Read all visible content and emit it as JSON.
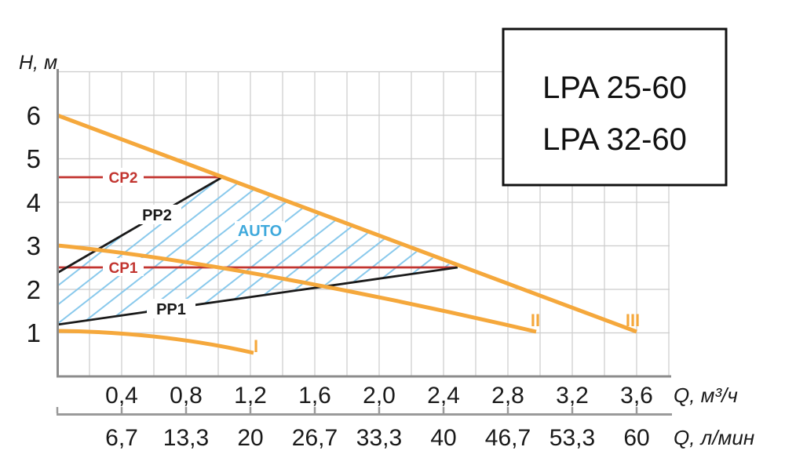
{
  "legend": {
    "line1": "LPA 25-60",
    "line2": "LPA 32-60"
  },
  "axes": {
    "y": {
      "label": "H, м",
      "ticks": [
        "6",
        "5",
        "4",
        "3",
        "2",
        "1"
      ]
    },
    "x1": {
      "unit": "Q, м³/ч",
      "ticks": [
        "0,4",
        "0,8",
        "1,2",
        "1,6",
        "2,0",
        "2,4",
        "2,8",
        "3,2",
        "3,6"
      ]
    },
    "x2": {
      "unit": "Q, л/мин",
      "ticks": [
        "6,7",
        "13,3",
        "20",
        "26,7",
        "33,3",
        "40",
        "46,7",
        "53,3",
        "60"
      ]
    }
  },
  "curve_labels": {
    "cp2": "CP2",
    "cp1": "CP1",
    "pp2": "PP2",
    "pp1": "PP1",
    "auto": "AUTO",
    "i": "I",
    "ii": "II",
    "iii": "III"
  },
  "colors": {
    "curve_orange": "#F5A83C",
    "cp_red": "#C2342F",
    "pp_black": "#1A1A1A",
    "auto_text_blue": "#3FA9DC",
    "hatch_blue": "#89C9EC",
    "grid": "#CCCCCC",
    "axis_gray": "#8C8C8C"
  },
  "chart_data": {
    "type": "line",
    "title": "LPA 25-60 / LPA 32-60 circulation pump performance curves",
    "xlabel": "Q, м³/ч",
    "xlabel_secondary": "Q, л/мин",
    "ylabel": "H, м",
    "x_range": [
      0,
      3.8
    ],
    "y_range": [
      0,
      7
    ],
    "grid": {
      "x_step": 0.2,
      "y_step": 1.0,
      "visible": true
    },
    "x_ticks_m3h": [
      0.4,
      0.8,
      1.2,
      1.6,
      2.0,
      2.4,
      2.8,
      3.2,
      3.6
    ],
    "x_ticks_lmin": [
      6.7,
      13.3,
      20,
      26.7,
      33.3,
      40,
      46.7,
      53.3,
      60
    ],
    "y_ticks": [
      1,
      2,
      3,
      4,
      5,
      6
    ],
    "series": [
      {
        "name": "III",
        "role": "speed-3-max-curve",
        "color": "#F5A83C",
        "points": [
          [
            0,
            6.0
          ],
          [
            3.6,
            1.0
          ]
        ]
      },
      {
        "name": "II",
        "role": "speed-2-curve",
        "color": "#F5A83C",
        "points": [
          [
            0,
            3.0
          ],
          [
            1.0,
            2.6
          ],
          [
            2.0,
            1.85
          ],
          [
            2.98,
            1.0
          ]
        ]
      },
      {
        "name": "I",
        "role": "speed-1-curve",
        "color": "#F5A83C",
        "points": [
          [
            0,
            1.05
          ],
          [
            0.8,
            0.95
          ],
          [
            1.22,
            0.55
          ]
        ]
      },
      {
        "name": "CP2",
        "role": "constant-pressure-2",
        "color": "#C2342F",
        "points": [
          [
            0,
            4.6
          ],
          [
            1.02,
            4.6
          ]
        ]
      },
      {
        "name": "CP1",
        "role": "constant-pressure-1",
        "color": "#C2342F",
        "points": [
          [
            0,
            2.5
          ],
          [
            2.5,
            2.5
          ]
        ]
      },
      {
        "name": "PP2",
        "role": "proportional-pressure-2",
        "color": "#1A1A1A",
        "points": [
          [
            0,
            2.4
          ],
          [
            1.02,
            4.6
          ]
        ]
      },
      {
        "name": "PP1",
        "role": "proportional-pressure-1",
        "color": "#1A1A1A",
        "points": [
          [
            0,
            1.2
          ],
          [
            2.5,
            2.5
          ]
        ]
      }
    ],
    "auto_region": {
      "label": "AUTO",
      "hatch_color": "#89C9EC",
      "bounded_by": [
        "PP2 (upper left)",
        "curve III (upper right)",
        "PP1 (lower)"
      ],
      "vertices_q_h": [
        [
          0,
          2.4
        ],
        [
          1.02,
          4.6
        ],
        [
          2.5,
          2.5
        ],
        [
          0,
          1.2
        ]
      ]
    },
    "legend_position": "top-right box"
  }
}
